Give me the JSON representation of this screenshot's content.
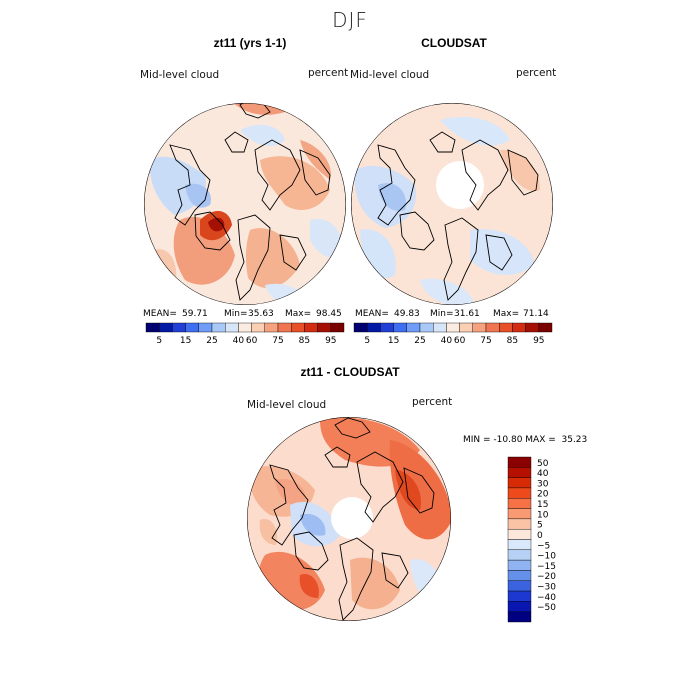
{
  "figure": {
    "title": "DJF"
  },
  "chart_data": [
    {
      "type": "heatmap",
      "title": "zt11 (yrs 1-1)",
      "left_label": "Mid-level cloud",
      "right_label": "percent",
      "projection": "north polar stereographic",
      "stats": {
        "mean_label": "MEAN=",
        "mean": "59.71",
        "min_label": "Min=",
        "min": "35.63",
        "max_label": "Max=",
        "max": "98.45"
      },
      "colorbar": {
        "ticks": [
          "5",
          "15",
          "25",
          "40",
          "60",
          "75",
          "85",
          "95"
        ],
        "colors": [
          "#00006e",
          "#001aa6",
          "#1f3fd6",
          "#3f6ef0",
          "#6f9cf6",
          "#a8c8f7",
          "#d6e6f8",
          "#fbece0",
          "#fbcfb3",
          "#f6a27e",
          "#ef7650",
          "#e8502a",
          "#d22d10",
          "#a51005",
          "#7a0000"
        ]
      }
    },
    {
      "type": "heatmap",
      "title": "CLOUDSAT",
      "left_label": "Mid-level cloud",
      "right_label": "percent",
      "projection": "north polar stereographic",
      "stats": {
        "mean_label": "MEAN=",
        "mean": "49.83",
        "min_label": "Min=",
        "min": "31.61",
        "max_label": "Max=",
        "max": "71.14"
      },
      "colorbar": {
        "ticks": [
          "5",
          "15",
          "25",
          "40",
          "60",
          "75",
          "85",
          "95"
        ],
        "colors": [
          "#00006e",
          "#001aa6",
          "#1f3fd6",
          "#3f6ef0",
          "#6f9cf6",
          "#a8c8f7",
          "#d6e6f8",
          "#fbece0",
          "#fbcfb3",
          "#f6a27e",
          "#ef7650",
          "#e8502a",
          "#d22d10",
          "#a51005",
          "#7a0000"
        ]
      }
    },
    {
      "type": "heatmap",
      "title": "zt11 - CLOUDSAT",
      "left_label": "Mid-level cloud",
      "right_label": "percent",
      "projection": "north polar stereographic",
      "stats_text": "MIN = -10.80 MAX =  35.23",
      "colorbar": {
        "ticks": [
          "50",
          "40",
          "30",
          "20",
          "15",
          "10",
          "5",
          "0",
          "-5",
          "-10",
          "-15",
          "-20",
          "-30",
          "-40",
          "-50"
        ],
        "colors": [
          "#8b0000",
          "#b50f00",
          "#d72a06",
          "#ee4a1c",
          "#f67246",
          "#f99a72",
          "#fbc3a6",
          "#fde6da",
          "#d9e8fa",
          "#b5d1f6",
          "#8fb4f1",
          "#6490ea",
          "#3b63e0",
          "#1c38d0",
          "#0a16b2",
          "#000080"
        ]
      }
    }
  ]
}
